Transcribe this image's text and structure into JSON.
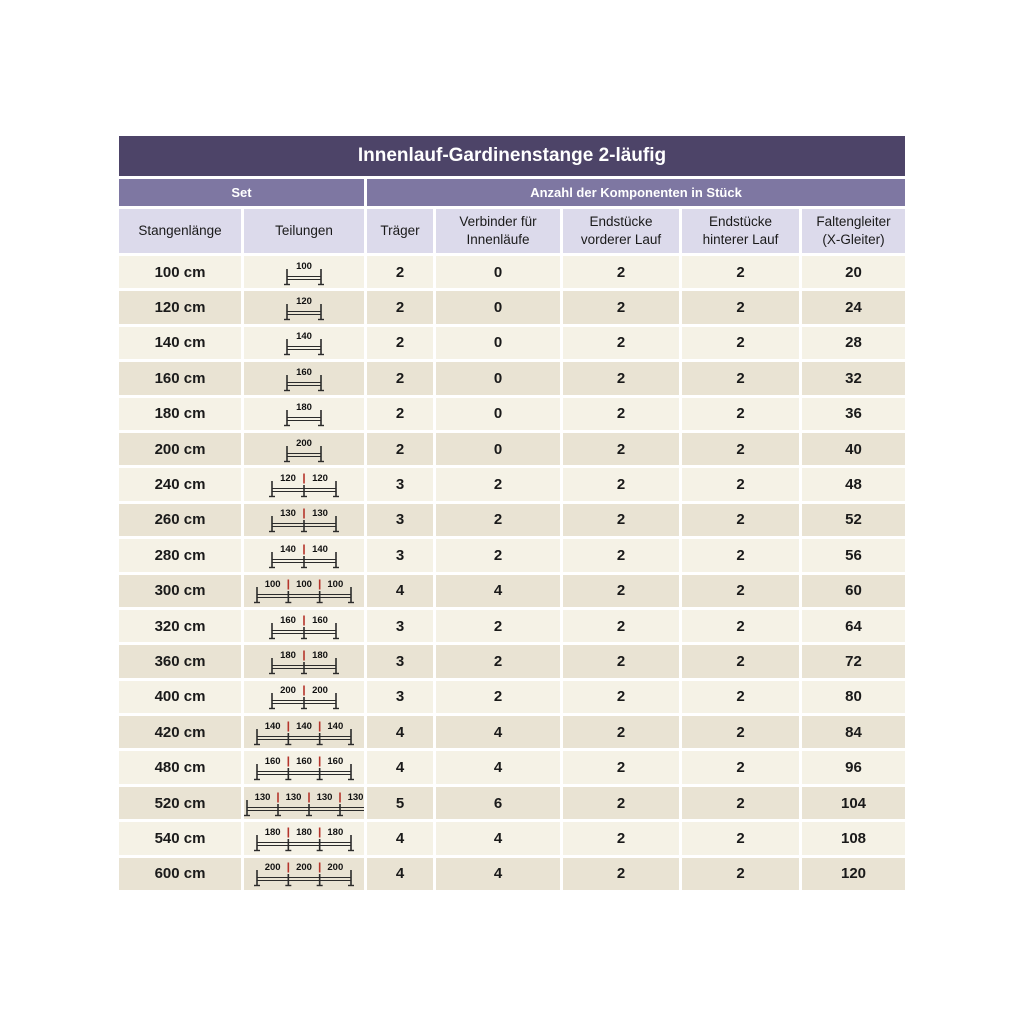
{
  "title": "Innenlauf-Gardinenstange 2-läufig",
  "groups": {
    "set": "Set",
    "components": "Anzahl der Komponenten in Stück"
  },
  "colors": {
    "title_bg": "#4d4468",
    "subheader_bg": "#7e77a2",
    "colheader_bg": "#dcdaeb",
    "row_odd": "#f5f2e6",
    "row_even": "#e9e3d3",
    "diagram_accent": "#b5342b"
  },
  "table": {
    "headers": [
      "Stangenlänge",
      "Teilungen",
      "Träger",
      "Verbinder für\nInnenläufe",
      "Endstücke\nvorderer Lauf",
      "Endstücke\nhinterer Lauf",
      "Faltengleiter\n(X-Gleiter)"
    ],
    "rows": [
      {
        "length": "100 cm",
        "segments": [
          100
        ],
        "traeger": "2",
        "verbinder": "0",
        "endstuecke_vorne": "2",
        "endstuecke_hinten": "2",
        "faltengleiter": "20"
      },
      {
        "length": "120 cm",
        "segments": [
          120
        ],
        "traeger": "2",
        "verbinder": "0",
        "endstuecke_vorne": "2",
        "endstuecke_hinten": "2",
        "faltengleiter": "24"
      },
      {
        "length": "140 cm",
        "segments": [
          140
        ],
        "traeger": "2",
        "verbinder": "0",
        "endstuecke_vorne": "2",
        "endstuecke_hinten": "2",
        "faltengleiter": "28"
      },
      {
        "length": "160 cm",
        "segments": [
          160
        ],
        "traeger": "2",
        "verbinder": "0",
        "endstuecke_vorne": "2",
        "endstuecke_hinten": "2",
        "faltengleiter": "32"
      },
      {
        "length": "180 cm",
        "segments": [
          180
        ],
        "traeger": "2",
        "verbinder": "0",
        "endstuecke_vorne": "2",
        "endstuecke_hinten": "2",
        "faltengleiter": "36"
      },
      {
        "length": "200 cm",
        "segments": [
          200
        ],
        "traeger": "2",
        "verbinder": "0",
        "endstuecke_vorne": "2",
        "endstuecke_hinten": "2",
        "faltengleiter": "40"
      },
      {
        "length": "240 cm",
        "segments": [
          120,
          120
        ],
        "traeger": "3",
        "verbinder": "2",
        "endstuecke_vorne": "2",
        "endstuecke_hinten": "2",
        "faltengleiter": "48"
      },
      {
        "length": "260 cm",
        "segments": [
          130,
          130
        ],
        "traeger": "3",
        "verbinder": "2",
        "endstuecke_vorne": "2",
        "endstuecke_hinten": "2",
        "faltengleiter": "52"
      },
      {
        "length": "280 cm",
        "segments": [
          140,
          140
        ],
        "traeger": "3",
        "verbinder": "2",
        "endstuecke_vorne": "2",
        "endstuecke_hinten": "2",
        "faltengleiter": "56"
      },
      {
        "length": "300 cm",
        "segments": [
          100,
          100,
          100
        ],
        "traeger": "4",
        "verbinder": "4",
        "endstuecke_vorne": "2",
        "endstuecke_hinten": "2",
        "faltengleiter": "60"
      },
      {
        "length": "320 cm",
        "segments": [
          160,
          160
        ],
        "traeger": "3",
        "verbinder": "2",
        "endstuecke_vorne": "2",
        "endstuecke_hinten": "2",
        "faltengleiter": "64"
      },
      {
        "length": "360 cm",
        "segments": [
          180,
          180
        ],
        "traeger": "3",
        "verbinder": "2",
        "endstuecke_vorne": "2",
        "endstuecke_hinten": "2",
        "faltengleiter": "72"
      },
      {
        "length": "400 cm",
        "segments": [
          200,
          200
        ],
        "traeger": "3",
        "verbinder": "2",
        "endstuecke_vorne": "2",
        "endstuecke_hinten": "2",
        "faltengleiter": "80"
      },
      {
        "length": "420 cm",
        "segments": [
          140,
          140,
          140
        ],
        "traeger": "4",
        "verbinder": "4",
        "endstuecke_vorne": "2",
        "endstuecke_hinten": "2",
        "faltengleiter": "84"
      },
      {
        "length": "480 cm",
        "segments": [
          160,
          160,
          160
        ],
        "traeger": "4",
        "verbinder": "4",
        "endstuecke_vorne": "2",
        "endstuecke_hinten": "2",
        "faltengleiter": "96"
      },
      {
        "length": "520 cm",
        "segments": [
          130,
          130,
          130,
          130
        ],
        "traeger": "5",
        "verbinder": "6",
        "endstuecke_vorne": "2",
        "endstuecke_hinten": "2",
        "faltengleiter": "104"
      },
      {
        "length": "540 cm",
        "segments": [
          180,
          180,
          180
        ],
        "traeger": "4",
        "verbinder": "4",
        "endstuecke_vorne": "2",
        "endstuecke_hinten": "2",
        "faltengleiter": "108"
      },
      {
        "length": "600 cm",
        "segments": [
          200,
          200,
          200
        ],
        "traeger": "4",
        "verbinder": "4",
        "endstuecke_vorne": "2",
        "endstuecke_hinten": "2",
        "faltengleiter": "120"
      }
    ]
  }
}
